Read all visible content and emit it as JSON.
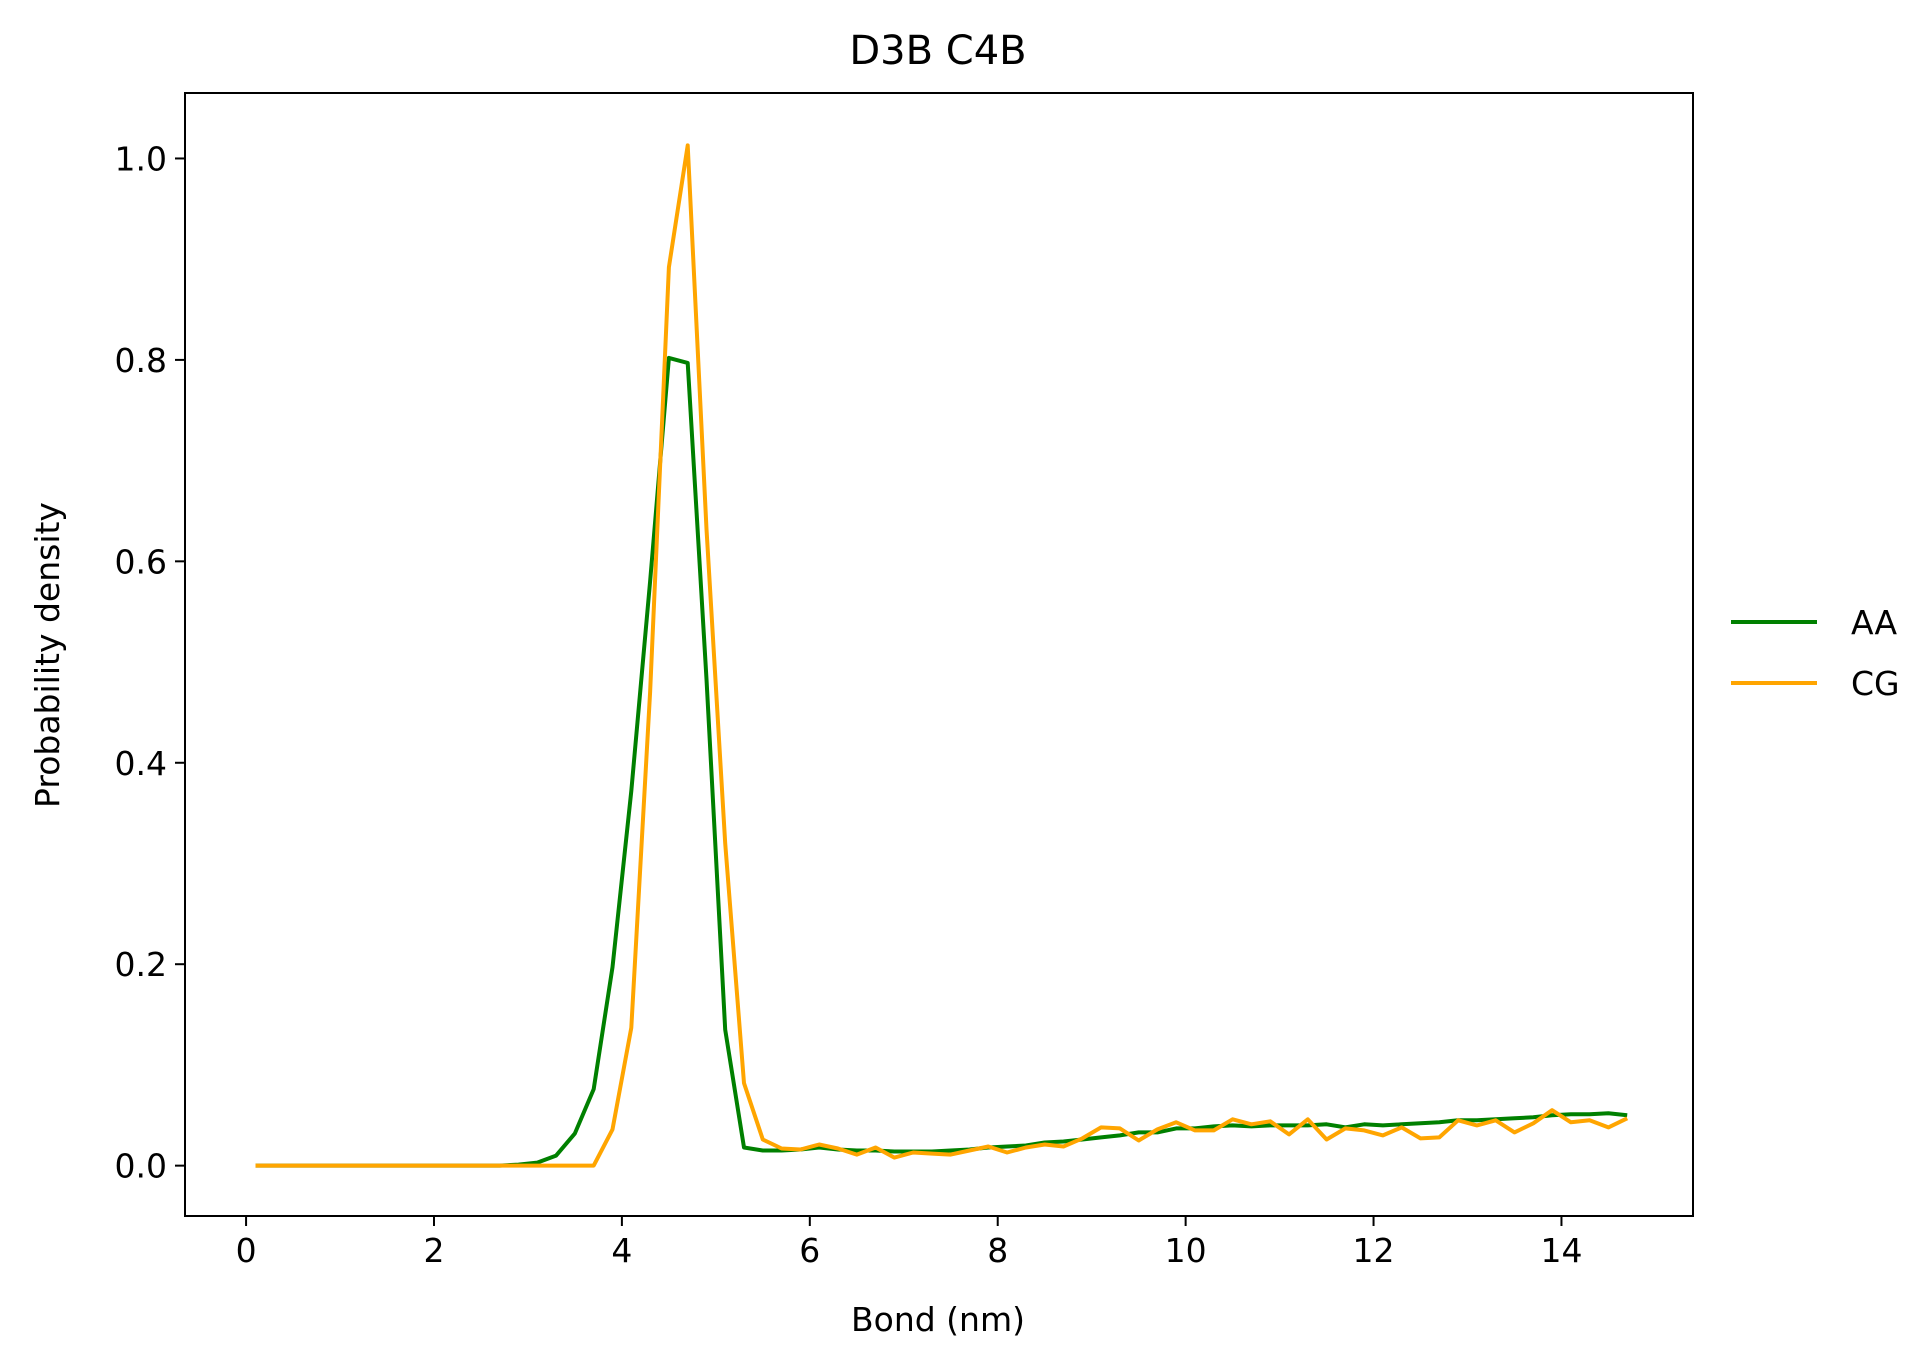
{
  "chart_data": {
    "type": "line",
    "title": "D3B C4B",
    "xlabel": "Bond (nm)",
    "ylabel": "Probability density",
    "xlim": [
      -0.65,
      15.4
    ],
    "ylim": [
      -0.05,
      1.065
    ],
    "xticks": [
      0,
      2,
      4,
      6,
      8,
      10,
      12,
      14
    ],
    "xtick_labels": [
      "0",
      "2",
      "4",
      "6",
      "8",
      "10",
      "12",
      "14"
    ],
    "yticks": [
      0.0,
      0.2,
      0.4,
      0.6,
      0.8,
      1.0
    ],
    "ytick_labels": [
      "0.0",
      "0.2",
      "0.4",
      "0.6",
      "0.8",
      "1.0"
    ],
    "grid": false,
    "legend_position": "right",
    "x": [
      0.1,
      0.3,
      0.5,
      0.7,
      0.9,
      1.1,
      1.3,
      1.5,
      1.7,
      1.9,
      2.1,
      2.3,
      2.5,
      2.7,
      2.9,
      3.1,
      3.3,
      3.5,
      3.7,
      3.9,
      4.1,
      4.3,
      4.5,
      4.7,
      4.9,
      5.1,
      5.3,
      5.5,
      5.7,
      5.9,
      6.1,
      6.3,
      6.5,
      6.7,
      6.9,
      7.1,
      7.3,
      7.5,
      7.7,
      7.9,
      8.1,
      8.3,
      8.5,
      8.7,
      8.9,
      9.1,
      9.3,
      9.5,
      9.7,
      9.9,
      10.1,
      10.3,
      10.5,
      10.7,
      10.9,
      11.1,
      11.3,
      11.5,
      11.7,
      11.9,
      12.1,
      12.3,
      12.5,
      12.7,
      12.9,
      13.1,
      13.3,
      13.5,
      13.7,
      13.9,
      14.1,
      14.3,
      14.5,
      14.7
    ],
    "series": [
      {
        "name": "AA",
        "color": "#008000",
        "values": [
          0.0,
          0.0,
          0.0,
          0.0,
          0.0,
          0.0,
          0.0,
          0.0,
          0.0,
          0.0,
          0.0,
          0.0,
          0.0,
          0.0,
          0.001,
          0.003,
          0.01,
          0.032,
          0.076,
          0.197,
          0.372,
          0.58,
          0.802,
          0.797,
          0.483,
          0.135,
          0.018,
          0.015,
          0.015,
          0.016,
          0.018,
          0.016,
          0.015,
          0.015,
          0.014,
          0.014,
          0.014,
          0.015,
          0.016,
          0.018,
          0.019,
          0.02,
          0.023,
          0.024,
          0.026,
          0.028,
          0.03,
          0.033,
          0.033,
          0.037,
          0.037,
          0.039,
          0.04,
          0.039,
          0.04,
          0.04,
          0.04,
          0.041,
          0.038,
          0.041,
          0.04,
          0.041,
          0.042,
          0.043,
          0.045,
          0.045,
          0.046,
          0.047,
          0.048,
          0.05,
          0.051,
          0.051,
          0.052,
          0.05
        ]
      },
      {
        "name": "CG",
        "color": "#ffa500",
        "values": [
          0.0,
          0.0,
          0.0,
          0.0,
          0.0,
          0.0,
          0.0,
          0.0,
          0.0,
          0.0,
          0.0,
          0.0,
          0.0,
          0.0,
          0.0,
          0.0,
          0.0,
          0.0,
          0.0,
          0.036,
          0.137,
          0.47,
          0.892,
          1.013,
          0.632,
          0.32,
          0.082,
          0.026,
          0.017,
          0.016,
          0.021,
          0.017,
          0.011,
          0.018,
          0.008,
          0.013,
          0.012,
          0.011,
          0.015,
          0.019,
          0.013,
          0.018,
          0.021,
          0.019,
          0.027,
          0.038,
          0.037,
          0.025,
          0.036,
          0.043,
          0.035,
          0.035,
          0.046,
          0.041,
          0.044,
          0.031,
          0.046,
          0.026,
          0.037,
          0.035,
          0.03,
          0.038,
          0.027,
          0.028,
          0.045,
          0.04,
          0.045,
          0.033,
          0.042,
          0.055,
          0.043,
          0.045,
          0.038,
          0.047
        ]
      }
    ]
  }
}
